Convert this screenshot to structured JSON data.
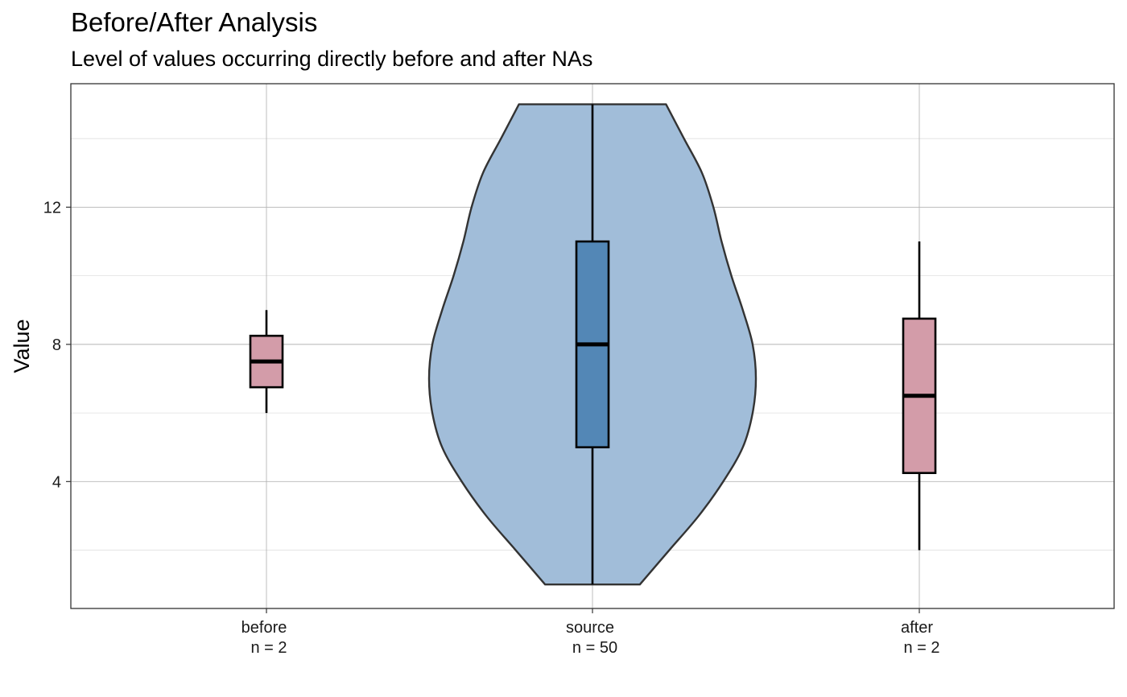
{
  "chart_data": {
    "type": "violin-box",
    "title": "Before/After Analysis",
    "subtitle": "Level of values occurring directly before and after NAs",
    "xlabel": "",
    "ylabel": "Value",
    "ylim": [
      0.3,
      15.6
    ],
    "yticks": [
      4,
      8,
      12
    ],
    "grid": true,
    "colors": {
      "violin_fill": "#A1BDD9",
      "violin_outline": "#333333",
      "source_box": "#5387B6",
      "side_box": "#D39CA9",
      "grid_major": "#b5b5b5",
      "grid_minor": "#e0e0e0",
      "panel_border": "#333333"
    },
    "categories": [
      {
        "name": "before",
        "n_label": "n = 2",
        "box": {
          "min": 6,
          "q1": 6.75,
          "median": 7.5,
          "q3": 8.25,
          "max": 9
        }
      },
      {
        "name": "source",
        "n_label": "n = 50",
        "box": {
          "min": 1,
          "q1": 5,
          "median": 8,
          "q3": 11,
          "max": 15
        }
      },
      {
        "name": "after",
        "n_label": "n = 2",
        "box": {
          "min": 2,
          "q1": 4.25,
          "median": 6.5,
          "q3": 8.75,
          "max": 11
        }
      }
    ],
    "violin": {
      "category": "source",
      "density": [
        {
          "y": 1.0,
          "width": 0.29
        },
        {
          "y": 2.0,
          "width": 0.47
        },
        {
          "y": 3.0,
          "width": 0.65
        },
        {
          "y": 4.0,
          "width": 0.8
        },
        {
          "y": 5.0,
          "width": 0.92
        },
        {
          "y": 6.0,
          "width": 0.98
        },
        {
          "y": 7.0,
          "width": 1.0
        },
        {
          "y": 8.0,
          "width": 0.98
        },
        {
          "y": 9.0,
          "width": 0.92
        },
        {
          "y": 10.0,
          "width": 0.85
        },
        {
          "y": 11.0,
          "width": 0.79
        },
        {
          "y": 12.0,
          "width": 0.74
        },
        {
          "y": 13.0,
          "width": 0.67
        },
        {
          "y": 14.0,
          "width": 0.56
        },
        {
          "y": 15.0,
          "width": 0.45
        }
      ]
    }
  }
}
